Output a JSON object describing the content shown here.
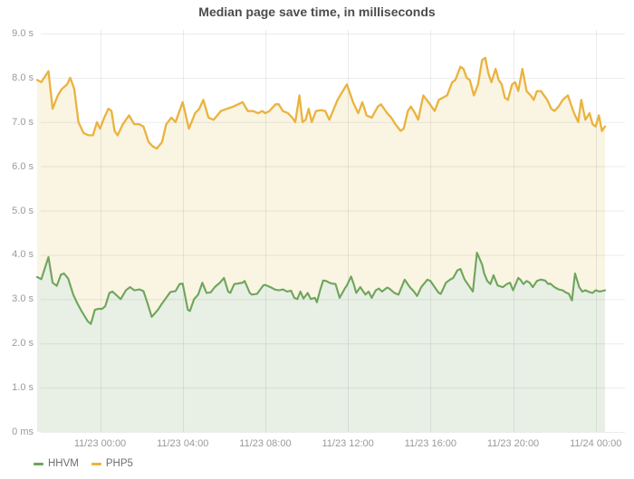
{
  "title": "Median page save time, in milliseconds",
  "chart_data": {
    "type": "area",
    "title": "Median page save time, in milliseconds",
    "grid": true,
    "background_color": "#ffffff",
    "grid_color": "rgba(0,0,0,0.075)",
    "axis_text_color": "#9a9a9a",
    "title_color": "#4c4c4c",
    "legend_position": "bottom-left",
    "x_axis": {
      "unit": "hours relative to 11/23 00:00",
      "t_min": -3.05,
      "t_max": 24.45,
      "ticks": [
        {
          "t": 0,
          "label": "11/23 00:00"
        },
        {
          "t": 4,
          "label": "11/23 04:00"
        },
        {
          "t": 8,
          "label": "11/23 08:00"
        },
        {
          "t": 12,
          "label": "11/23 12:00"
        },
        {
          "t": 16,
          "label": "11/23 16:00"
        },
        {
          "t": 20,
          "label": "11/23 20:00"
        },
        {
          "t": 24,
          "label": "11/24 00:00"
        }
      ]
    },
    "y_axis": {
      "unit": "seconds",
      "v_min": 0,
      "v_max": 9,
      "ticks": [
        {
          "v": 9,
          "label": "9.0 s"
        },
        {
          "v": 8,
          "label": "8.0 s"
        },
        {
          "v": 7,
          "label": "7.0 s"
        },
        {
          "v": 6,
          "label": "6.0 s"
        },
        {
          "v": 5,
          "label": "5.0 s"
        },
        {
          "v": 4,
          "label": "4.0 s"
        },
        {
          "v": 3,
          "label": "3.0 s"
        },
        {
          "v": 2,
          "label": "2.0 s"
        },
        {
          "v": 1,
          "label": "1.0 s"
        },
        {
          "v": 0,
          "label": "0 ms"
        }
      ]
    },
    "draw_order": [
      1,
      0
    ],
    "series": [
      {
        "name": "HHVM",
        "color": "#6ea55b",
        "fill": "#e8efe5",
        "points": [
          [
            -3.05,
            3.5
          ],
          [
            -2.85,
            3.45
          ],
          [
            -2.5,
            3.95
          ],
          [
            -2.3,
            3.37
          ],
          [
            -2.1,
            3.3
          ],
          [
            -1.9,
            3.55
          ],
          [
            -1.75,
            3.58
          ],
          [
            -1.55,
            3.47
          ],
          [
            -1.3,
            3.1
          ],
          [
            -1.1,
            2.9
          ],
          [
            -0.9,
            2.73
          ],
          [
            -0.6,
            2.5
          ],
          [
            -0.45,
            2.44
          ],
          [
            -0.25,
            2.76
          ],
          [
            -0.1,
            2.78
          ],
          [
            0.1,
            2.78
          ],
          [
            0.25,
            2.84
          ],
          [
            0.45,
            3.14
          ],
          [
            0.6,
            3.17
          ],
          [
            0.9,
            3.04
          ],
          [
            1.0,
            3.0
          ],
          [
            1.25,
            3.2
          ],
          [
            1.45,
            3.27
          ],
          [
            1.65,
            3.2
          ],
          [
            1.9,
            3.22
          ],
          [
            2.1,
            3.18
          ],
          [
            2.3,
            2.9
          ],
          [
            2.5,
            2.6
          ],
          [
            2.65,
            2.68
          ],
          [
            2.8,
            2.76
          ],
          [
            3.0,
            2.9
          ],
          [
            3.4,
            3.16
          ],
          [
            3.65,
            3.18
          ],
          [
            3.85,
            3.34
          ],
          [
            4.0,
            3.35
          ],
          [
            4.25,
            2.76
          ],
          [
            4.35,
            2.73
          ],
          [
            4.55,
            3.0
          ],
          [
            4.75,
            3.1
          ],
          [
            4.95,
            3.37
          ],
          [
            5.15,
            3.14
          ],
          [
            5.35,
            3.15
          ],
          [
            5.55,
            3.27
          ],
          [
            5.8,
            3.37
          ],
          [
            6.0,
            3.48
          ],
          [
            6.2,
            3.17
          ],
          [
            6.3,
            3.14
          ],
          [
            6.5,
            3.34
          ],
          [
            6.65,
            3.35
          ],
          [
            6.9,
            3.37
          ],
          [
            7.0,
            3.41
          ],
          [
            7.25,
            3.14
          ],
          [
            7.35,
            3.1
          ],
          [
            7.6,
            3.12
          ],
          [
            7.9,
            3.31
          ],
          [
            8.0,
            3.32
          ],
          [
            8.25,
            3.27
          ],
          [
            8.45,
            3.22
          ],
          [
            8.65,
            3.2
          ],
          [
            8.85,
            3.22
          ],
          [
            9.05,
            3.17
          ],
          [
            9.25,
            3.19
          ],
          [
            9.4,
            3.03
          ],
          [
            9.55,
            3.0
          ],
          [
            9.7,
            3.17
          ],
          [
            9.85,
            3.01
          ],
          [
            10.05,
            3.14
          ],
          [
            10.2,
            3.0
          ],
          [
            10.4,
            3.03
          ],
          [
            10.5,
            2.93
          ],
          [
            10.65,
            3.2
          ],
          [
            10.8,
            3.42
          ],
          [
            10.95,
            3.41
          ],
          [
            11.1,
            3.37
          ],
          [
            11.25,
            3.35
          ],
          [
            11.4,
            3.34
          ],
          [
            11.6,
            3.03
          ],
          [
            11.85,
            3.24
          ],
          [
            11.95,
            3.31
          ],
          [
            12.15,
            3.51
          ],
          [
            12.3,
            3.31
          ],
          [
            12.4,
            3.14
          ],
          [
            12.6,
            3.27
          ],
          [
            12.85,
            3.1
          ],
          [
            13.0,
            3.17
          ],
          [
            13.15,
            3.03
          ],
          [
            13.35,
            3.2
          ],
          [
            13.5,
            3.24
          ],
          [
            13.65,
            3.17
          ],
          [
            13.9,
            3.26
          ],
          [
            14.0,
            3.24
          ],
          [
            14.25,
            3.14
          ],
          [
            14.45,
            3.1
          ],
          [
            14.75,
            3.44
          ],
          [
            15.0,
            3.27
          ],
          [
            15.2,
            3.17
          ],
          [
            15.35,
            3.07
          ],
          [
            15.55,
            3.27
          ],
          [
            15.85,
            3.44
          ],
          [
            16.0,
            3.41
          ],
          [
            16.2,
            3.27
          ],
          [
            16.4,
            3.14
          ],
          [
            16.5,
            3.12
          ],
          [
            16.75,
            3.37
          ],
          [
            16.95,
            3.44
          ],
          [
            17.1,
            3.48
          ],
          [
            17.3,
            3.65
          ],
          [
            17.45,
            3.68
          ],
          [
            17.65,
            3.44
          ],
          [
            17.8,
            3.34
          ],
          [
            18.05,
            3.17
          ],
          [
            18.25,
            4.05
          ],
          [
            18.5,
            3.78
          ],
          [
            18.6,
            3.58
          ],
          [
            18.75,
            3.41
          ],
          [
            18.9,
            3.34
          ],
          [
            19.05,
            3.54
          ],
          [
            19.25,
            3.31
          ],
          [
            19.5,
            3.27
          ],
          [
            19.7,
            3.34
          ],
          [
            19.85,
            3.37
          ],
          [
            20.0,
            3.2
          ],
          [
            20.25,
            3.48
          ],
          [
            20.35,
            3.44
          ],
          [
            20.5,
            3.34
          ],
          [
            20.65,
            3.41
          ],
          [
            20.8,
            3.37
          ],
          [
            20.95,
            3.27
          ],
          [
            21.15,
            3.41
          ],
          [
            21.35,
            3.44
          ],
          [
            21.55,
            3.42
          ],
          [
            21.7,
            3.34
          ],
          [
            21.8,
            3.35
          ],
          [
            22.0,
            3.27
          ],
          [
            22.2,
            3.22
          ],
          [
            22.4,
            3.2
          ],
          [
            22.55,
            3.15
          ],
          [
            22.7,
            3.12
          ],
          [
            22.85,
            2.97
          ],
          [
            23.0,
            3.58
          ],
          [
            23.2,
            3.27
          ],
          [
            23.35,
            3.17
          ],
          [
            23.5,
            3.2
          ],
          [
            23.75,
            3.15
          ],
          [
            23.85,
            3.14
          ],
          [
            24.0,
            3.2
          ],
          [
            24.2,
            3.17
          ],
          [
            24.45,
            3.2
          ]
        ]
      },
      {
        "name": "PHP5",
        "color": "#eab33e",
        "fill": "#faf4e2",
        "points": [
          [
            -3.05,
            7.95
          ],
          [
            -2.85,
            7.9
          ],
          [
            -2.5,
            8.15
          ],
          [
            -2.3,
            7.3
          ],
          [
            -2.05,
            7.6
          ],
          [
            -1.85,
            7.75
          ],
          [
            -1.6,
            7.85
          ],
          [
            -1.45,
            8.0
          ],
          [
            -1.25,
            7.75
          ],
          [
            -1.05,
            7.0
          ],
          [
            -0.8,
            6.75
          ],
          [
            -0.55,
            6.7
          ],
          [
            -0.35,
            6.7
          ],
          [
            -0.15,
            7.0
          ],
          [
            0.0,
            6.85
          ],
          [
            0.2,
            7.1
          ],
          [
            0.4,
            7.3
          ],
          [
            0.55,
            7.25
          ],
          [
            0.7,
            6.8
          ],
          [
            0.85,
            6.7
          ],
          [
            1.1,
            6.95
          ],
          [
            1.4,
            7.15
          ],
          [
            1.65,
            6.95
          ],
          [
            1.9,
            6.95
          ],
          [
            2.1,
            6.9
          ],
          [
            2.35,
            6.55
          ],
          [
            2.55,
            6.45
          ],
          [
            2.75,
            6.4
          ],
          [
            3.0,
            6.55
          ],
          [
            3.2,
            6.95
          ],
          [
            3.45,
            7.1
          ],
          [
            3.65,
            7.0
          ],
          [
            4.0,
            7.45
          ],
          [
            4.3,
            6.85
          ],
          [
            4.6,
            7.2
          ],
          [
            4.8,
            7.3
          ],
          [
            5.0,
            7.5
          ],
          [
            5.25,
            7.1
          ],
          [
            5.5,
            7.05
          ],
          [
            5.85,
            7.25
          ],
          [
            6.15,
            7.3
          ],
          [
            6.45,
            7.35
          ],
          [
            6.9,
            7.45
          ],
          [
            7.15,
            7.25
          ],
          [
            7.4,
            7.25
          ],
          [
            7.65,
            7.2
          ],
          [
            7.85,
            7.25
          ],
          [
            8.0,
            7.2
          ],
          [
            8.2,
            7.25
          ],
          [
            8.5,
            7.4
          ],
          [
            8.65,
            7.4
          ],
          [
            8.85,
            7.25
          ],
          [
            9.1,
            7.2
          ],
          [
            9.3,
            7.1
          ],
          [
            9.45,
            7.0
          ],
          [
            9.65,
            7.6
          ],
          [
            9.8,
            7.0
          ],
          [
            9.95,
            7.05
          ],
          [
            10.1,
            7.3
          ],
          [
            10.25,
            7.0
          ],
          [
            10.45,
            7.25
          ],
          [
            10.7,
            7.27
          ],
          [
            10.9,
            7.25
          ],
          [
            11.1,
            7.05
          ],
          [
            11.5,
            7.5
          ],
          [
            11.75,
            7.7
          ],
          [
            11.95,
            7.85
          ],
          [
            12.25,
            7.45
          ],
          [
            12.5,
            7.2
          ],
          [
            12.7,
            7.45
          ],
          [
            12.9,
            7.15
          ],
          [
            13.15,
            7.1
          ],
          [
            13.45,
            7.35
          ],
          [
            13.6,
            7.4
          ],
          [
            13.9,
            7.2
          ],
          [
            14.1,
            7.1
          ],
          [
            14.3,
            6.95
          ],
          [
            14.55,
            6.8
          ],
          [
            14.7,
            6.85
          ],
          [
            14.9,
            7.25
          ],
          [
            15.05,
            7.35
          ],
          [
            15.25,
            7.2
          ],
          [
            15.4,
            7.05
          ],
          [
            15.65,
            7.6
          ],
          [
            15.9,
            7.45
          ],
          [
            16.05,
            7.35
          ],
          [
            16.2,
            7.25
          ],
          [
            16.4,
            7.5
          ],
          [
            16.6,
            7.55
          ],
          [
            16.8,
            7.6
          ],
          [
            17.05,
            7.9
          ],
          [
            17.2,
            7.95
          ],
          [
            17.45,
            8.25
          ],
          [
            17.6,
            8.2
          ],
          [
            17.75,
            8.0
          ],
          [
            17.9,
            7.95
          ],
          [
            18.1,
            7.6
          ],
          [
            18.3,
            7.85
          ],
          [
            18.5,
            8.4
          ],
          [
            18.65,
            8.45
          ],
          [
            18.8,
            8.1
          ],
          [
            18.95,
            7.9
          ],
          [
            19.15,
            8.2
          ],
          [
            19.3,
            7.95
          ],
          [
            19.45,
            7.85
          ],
          [
            19.6,
            7.55
          ],
          [
            19.75,
            7.5
          ],
          [
            19.95,
            7.85
          ],
          [
            20.1,
            7.9
          ],
          [
            20.25,
            7.7
          ],
          [
            20.45,
            8.2
          ],
          [
            20.65,
            7.7
          ],
          [
            20.85,
            7.6
          ],
          [
            21.0,
            7.5
          ],
          [
            21.15,
            7.7
          ],
          [
            21.35,
            7.7
          ],
          [
            21.5,
            7.6
          ],
          [
            21.65,
            7.5
          ],
          [
            21.85,
            7.3
          ],
          [
            22.0,
            7.25
          ],
          [
            22.2,
            7.35
          ],
          [
            22.4,
            7.5
          ],
          [
            22.65,
            7.6
          ],
          [
            22.8,
            7.4
          ],
          [
            22.95,
            7.2
          ],
          [
            23.15,
            7.0
          ],
          [
            23.3,
            7.5
          ],
          [
            23.5,
            7.05
          ],
          [
            23.7,
            7.2
          ],
          [
            23.85,
            6.95
          ],
          [
            24.0,
            6.9
          ],
          [
            24.15,
            7.15
          ],
          [
            24.3,
            6.8
          ],
          [
            24.45,
            6.9
          ]
        ]
      }
    ]
  },
  "legend": {
    "items": [
      {
        "label": "HHVM",
        "color": "#6ea55b"
      },
      {
        "label": "PHP5",
        "color": "#eab33e"
      }
    ]
  }
}
